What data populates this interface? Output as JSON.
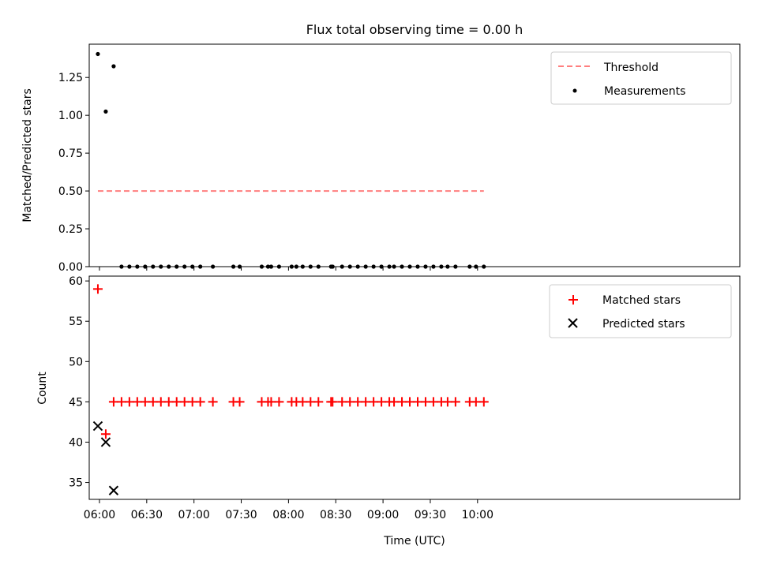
{
  "figure": {
    "title": "Flux total observing time = 0.00 h"
  },
  "chart_data": [
    {
      "type": "scatter",
      "panel": "top",
      "xlabel": "",
      "ylabel": "Matched/Predicted stars",
      "xlim_minutes": [
        -6.5,
        406.5
      ],
      "ylim": [
        0,
        1.47
      ],
      "yticks": [
        0.0,
        0.25,
        0.5,
        0.75,
        1.0,
        1.25
      ],
      "ytick_labels": [
        "0.00",
        "0.25",
        "0.50",
        "0.75",
        "1.00",
        "1.25"
      ],
      "grid": false,
      "legend_position": "upper right",
      "series": [
        {
          "name": "Threshold",
          "style": "dashed-line",
          "color": "#ff7f7f",
          "x": [
            "05:59",
            "10:04"
          ],
          "y": [
            0.5,
            0.5
          ]
        },
        {
          "name": "Measurements",
          "style": "dot",
          "color": "#000000",
          "x": [
            "05:59",
            "06:04",
            "06:09",
            "06:14",
            "06:19",
            "06:24",
            "06:29",
            "06:34",
            "06:39",
            "06:44",
            "06:49",
            "06:54",
            "06:59",
            "07:04",
            "07:12",
            "07:25",
            "07:29",
            "07:43",
            "07:47",
            "07:49",
            "07:54",
            "08:02",
            "08:05",
            "08:09",
            "08:14",
            "08:19",
            "08:27",
            "08:28",
            "08:34",
            "08:39",
            "08:44",
            "08:49",
            "08:54",
            "08:59",
            "09:04",
            "09:07",
            "09:12",
            "09:17",
            "09:22",
            "09:27",
            "09:32",
            "09:37",
            "09:41",
            "09:46",
            "09:55",
            "09:59",
            "10:04"
          ],
          "y": [
            1.405,
            1.025,
            1.324,
            0,
            0,
            0,
            0,
            0,
            0,
            0,
            0,
            0,
            0,
            0,
            0,
            0,
            0,
            0,
            0,
            0,
            0,
            0,
            0,
            0,
            0,
            0,
            0,
            0,
            0,
            0,
            0,
            0,
            0,
            0,
            0,
            0,
            0,
            0,
            0,
            0,
            0,
            0,
            0,
            0,
            0,
            0,
            0
          ]
        }
      ]
    },
    {
      "type": "scatter",
      "panel": "bottom",
      "xlabel": "Time (UTC)",
      "ylabel": "Count",
      "xlim_minutes": [
        -6.5,
        406.5
      ],
      "ylim": [
        32.9,
        60.6
      ],
      "yticks": [
        35,
        40,
        45,
        50,
        55,
        60
      ],
      "ytick_labels": [
        "35",
        "40",
        "45",
        "50",
        "55",
        "60"
      ],
      "xticks_minutes": [
        0,
        30,
        60,
        90,
        120,
        150,
        180,
        210,
        240
      ],
      "xtick_labels": [
        "06:00",
        "06:30",
        "07:00",
        "07:30",
        "08:00",
        "08:30",
        "09:00",
        "09:30",
        "10:00"
      ],
      "grid": false,
      "legend_position": "upper right",
      "series": [
        {
          "name": "Matched stars",
          "style": "plus",
          "color": "#ff0000",
          "x": [
            "05:59",
            "06:04",
            "06:09",
            "06:14",
            "06:19",
            "06:24",
            "06:29",
            "06:34",
            "06:39",
            "06:44",
            "06:49",
            "06:54",
            "06:59",
            "07:04",
            "07:12",
            "07:25",
            "07:29",
            "07:43",
            "07:47",
            "07:49",
            "07:54",
            "08:02",
            "08:05",
            "08:09",
            "08:14",
            "08:19",
            "08:27",
            "08:28",
            "08:34",
            "08:39",
            "08:44",
            "08:49",
            "08:54",
            "08:59",
            "09:04",
            "09:07",
            "09:12",
            "09:17",
            "09:22",
            "09:27",
            "09:32",
            "09:37",
            "09:41",
            "09:46",
            "09:55",
            "09:59",
            "10:04"
          ],
          "y": [
            59,
            41,
            45,
            45,
            45,
            45,
            45,
            45,
            45,
            45,
            45,
            45,
            45,
            45,
            45,
            45,
            45,
            45,
            45,
            45,
            45,
            45,
            45,
            45,
            45,
            45,
            45,
            45,
            45,
            45,
            45,
            45,
            45,
            45,
            45,
            45,
            45,
            45,
            45,
            45,
            45,
            45,
            45,
            45,
            45,
            45,
            45
          ]
        },
        {
          "name": "Predicted stars",
          "style": "cross",
          "color": "#000000",
          "x": [
            "05:59",
            "06:04",
            "06:09"
          ],
          "y": [
            42,
            40,
            34
          ]
        }
      ]
    }
  ]
}
